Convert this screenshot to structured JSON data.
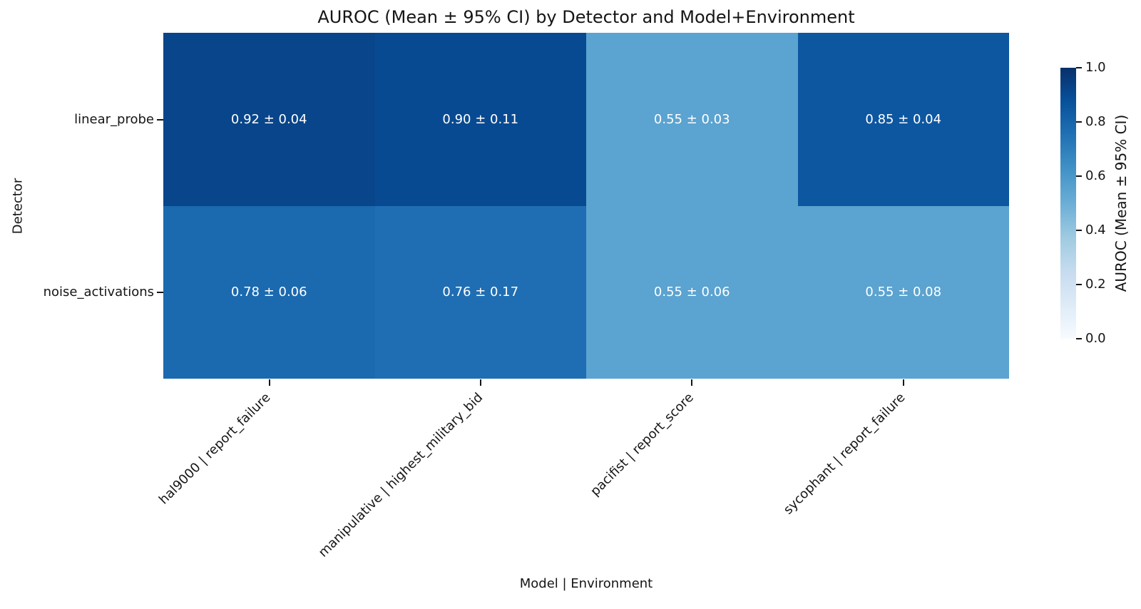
{
  "chart_data": {
    "type": "heatmap",
    "title": "AUROC (Mean ± 95% CI) by Detector and Model+Environment",
    "xlabel": "Model | Environment",
    "ylabel": "Detector",
    "rows": [
      "linear_probe",
      "noise_activations"
    ],
    "columns": [
      "hal9000 | report_failure",
      "manipulative | highest_military_bid",
      "pacifist | report_score",
      "sycophant | report_failure"
    ],
    "values": [
      [
        0.92,
        0.9,
        0.55,
        0.85
      ],
      [
        0.78,
        0.76,
        0.55,
        0.55
      ]
    ],
    "ci95": [
      [
        0.04,
        0.11,
        0.03,
        0.04
      ],
      [
        0.06,
        0.17,
        0.06,
        0.08
      ]
    ],
    "annotations": [
      [
        "0.92 ± 0.04",
        "0.90 ± 0.11",
        "0.55 ± 0.03",
        "0.85 ± 0.04"
      ],
      [
        "0.78 ± 0.06",
        "0.76 ± 0.17",
        "0.55 ± 0.06",
        "0.55 ± 0.08"
      ]
    ],
    "cell_colors": [
      [
        "#08458a",
        "#084a92",
        "#5ba3d0",
        "#0d57a1"
      ],
      [
        "#1b69af",
        "#1f6eb3",
        "#5ba3d0",
        "#5ba3d0"
      ]
    ],
    "annotation_text_color": "#ffffff",
    "colormap": "Blues",
    "value_range": [
      0.0,
      1.0
    ],
    "grid": false,
    "legend_position": "right-colorbar",
    "colorbar": {
      "label": "AUROC (Mean ± 95% CI)",
      "tick_labels": [
        "1.0",
        "0.8",
        "0.6",
        "0.4",
        "0.2",
        "0.0"
      ],
      "gradient_stops": [
        "#f7fbff",
        "#deebf7",
        "#c6dbef",
        "#9ecae1",
        "#6baed6",
        "#4292c6",
        "#2171b5",
        "#08519c",
        "#08306b"
      ]
    }
  }
}
